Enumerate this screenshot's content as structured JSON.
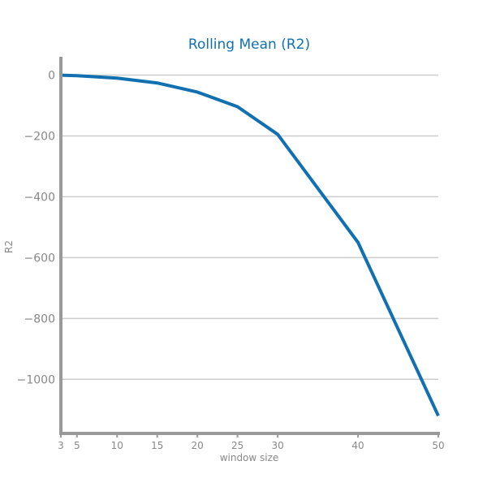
{
  "chart_data": {
    "type": "line",
    "title": "Rolling Mean (R2)",
    "xlabel": "window size",
    "ylabel": "R2",
    "x": [
      3,
      5,
      10,
      15,
      20,
      25,
      30,
      40,
      50
    ],
    "series": [
      {
        "values": [
          -0.4,
          -2,
          -10,
          -26,
          -56,
          -104,
          -195,
          -550,
          -1120
        ]
      }
    ],
    "xticks": [
      3,
      5,
      10,
      15,
      20,
      25,
      30,
      40,
      50
    ],
    "yticks": [
      0,
      -200,
      -400,
      -600,
      -800,
      -1000
    ],
    "ytick_labels": [
      "0",
      "−200",
      "−400",
      "−600",
      "−800",
      "−1000"
    ],
    "xlim": [
      3,
      50
    ],
    "ylim": [
      -1178,
      60
    ],
    "grid": "horizontal",
    "legend": "none",
    "colors": {
      "line": "#1170b0",
      "title": "#1170b0",
      "axis": "#999999",
      "grid": "#cccccc",
      "text": "#888888"
    }
  }
}
